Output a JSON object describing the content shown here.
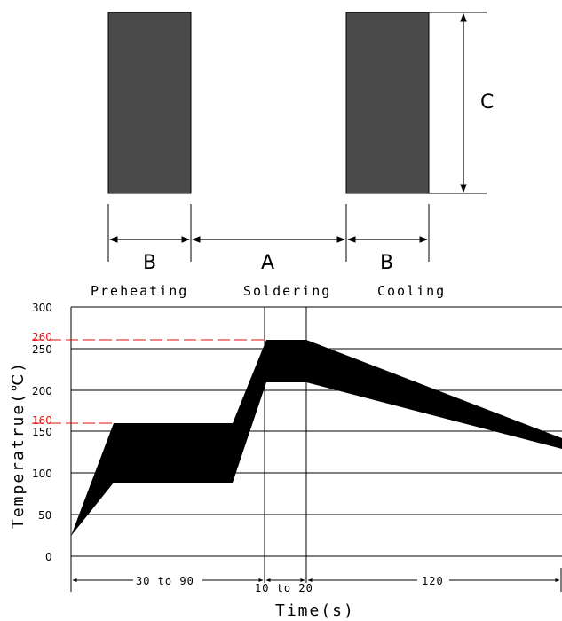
{
  "footprint": {
    "label_a": "A",
    "label_b_left": "B",
    "label_b_right": "B",
    "label_c": "C",
    "pad_color": "#4a4a4a"
  },
  "profile": {
    "phases": [
      "Preheating",
      "Soldering",
      "Cooling"
    ],
    "y_axis_title": "Temperatrue(℃)",
    "x_axis_title": "Time(s)",
    "y_ticks": [
      "0",
      "50",
      "100",
      "150",
      "200",
      "250",
      "300"
    ],
    "marked_temps": [
      "160",
      "260"
    ],
    "marked_color": "#e11111",
    "durations": [
      "30 to 90",
      "10 to 20",
      "120"
    ],
    "band_color": "#000000"
  }
}
